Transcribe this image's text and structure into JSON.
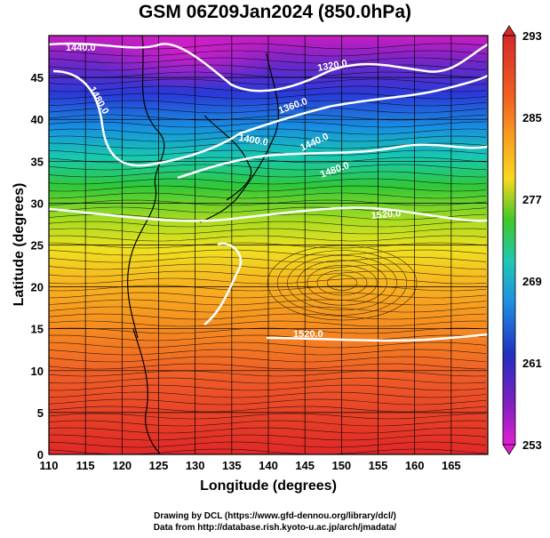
{
  "title": "GSM 06Z09Jan2024 (850.0hPa)",
  "x_axis": {
    "label": "Longitude (degrees)",
    "range": [
      110,
      170
    ],
    "ticks": [
      "110",
      "115",
      "120",
      "125",
      "130",
      "135",
      "140",
      "145",
      "150",
      "155",
      "160",
      "165"
    ]
  },
  "y_axis": {
    "label": "Latitude  (degrees)",
    "range": [
      0,
      50
    ],
    "ticks": [
      "0",
      "5",
      "10",
      "15",
      "20",
      "25",
      "30",
      "35",
      "40",
      "45"
    ]
  },
  "colorbar": {
    "range": [
      253,
      293
    ],
    "ticks": [
      "293",
      "285",
      "277",
      "269",
      "261",
      "253"
    ],
    "colors": [
      "#d42a2a",
      "#f08020",
      "#f5d018",
      "#30c820",
      "#20c8d8",
      "#2050d0",
      "#2020b0",
      "#c010c0",
      "#e020d0"
    ]
  },
  "contour_labels": [
    "1440.0",
    "1480.0",
    "1320.0",
    "1360.0",
    "1400.0",
    "1440.0",
    "1480.0",
    "1520.0",
    "1520.0"
  ],
  "credits": {
    "line1": "Drawing by DCL (https://www.gfd-dennou.org/library/dcl/)",
    "line2": "Data from http://database.rish.kyoto-u.ac.jp/arch/jmadata/"
  }
}
